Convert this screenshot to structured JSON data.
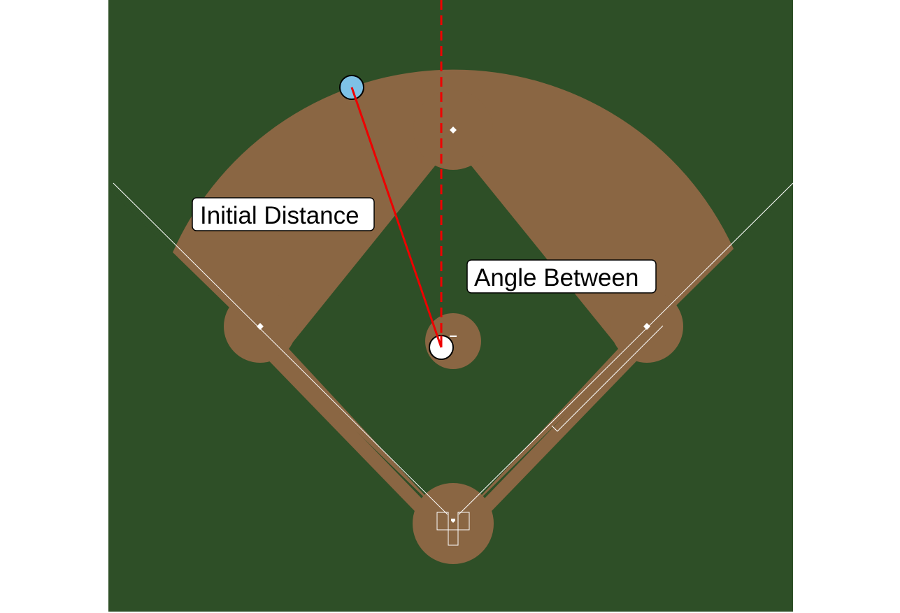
{
  "labels": {
    "initial_distance": "Initial Distance",
    "angle_between": "Angle Between"
  },
  "colors": {
    "grass": "#2E4F27",
    "dirt": "#8A6643",
    "chalk": "#FFFFFF",
    "vector_line": "#EE0000",
    "ball_fill": "#7EC1E6",
    "runner_fill": "#FFFFFF",
    "label_box_fill": "#FFFFFF",
    "background": "#FFFFFF"
  }
}
